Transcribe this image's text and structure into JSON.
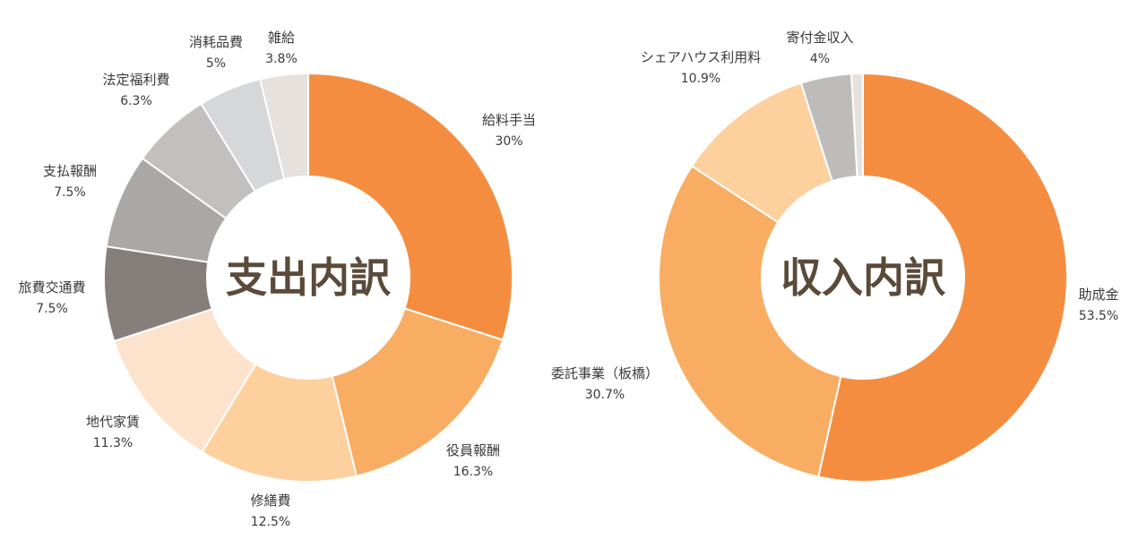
{
  "chart_data": [
    {
      "type": "pie",
      "title": "支出内訳",
      "slices": [
        {
          "label": "給料手当",
          "value": 30,
          "value_label": "30%",
          "color": "#f58d40"
        },
        {
          "label": "役員報酬",
          "value": 16.3,
          "value_label": "16.3%",
          "color": "#f8ad63"
        },
        {
          "label": "修繕費",
          "value": 12.5,
          "value_label": "12.5%",
          "color": "#fdd09d"
        },
        {
          "label": "地代家賃",
          "value": 11.3,
          "value_label": "11.3%",
          "color": "#fde2cc"
        },
        {
          "label": "旅費交通費",
          "value": 7.5,
          "value_label": "7.5%",
          "color": "#857e7b"
        },
        {
          "label": "支払報酬",
          "value": 7.5,
          "value_label": "7.5%",
          "color": "#a9a8a7"
        },
        {
          "label": "法定福利費",
          "value": 6.3,
          "value_label": "6.3%",
          "color": "#c1c0bf"
        },
        {
          "label": "消耗品費",
          "value": 5,
          "value_label": "5%",
          "color": "#d6d7d8"
        },
        {
          "label": "雑給",
          "value": 3.8,
          "value_label": "3.8%",
          "color": "#e6e1dc"
        }
      ]
    },
    {
      "type": "pie",
      "title": "収入内訳",
      "slices": [
        {
          "label": "助成金",
          "value": 53.5,
          "value_label": "53.5%",
          "color": "#f58d40"
        },
        {
          "label": "委託事業（板橋）",
          "value": 30.7,
          "value_label": "30.7%",
          "color": "#f8ad63"
        },
        {
          "label": "シェアハウス利用料",
          "value": 10.9,
          "value_label": "10.9%",
          "color": "#fdd09d"
        },
        {
          "label": "寄付金収入",
          "value": 4,
          "value_label": "4%",
          "color": "#bebcba"
        },
        {
          "label": "",
          "value": 0.9,
          "value_label": "",
          "color": "#e6e1dc"
        }
      ]
    }
  ]
}
